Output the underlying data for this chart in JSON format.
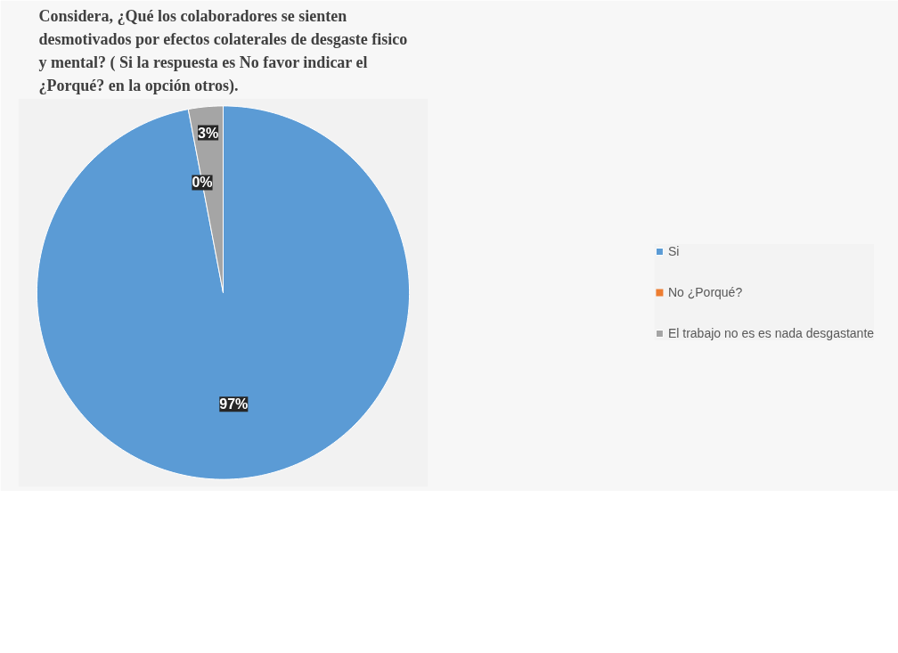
{
  "chart_data": {
    "type": "pie",
    "title": "Considera, ¿Qué los colaboradores  se sienten desmotivados por efectos colaterales de desgaste fisico y mental? ( Si la respuesta es No favor indicar  el ¿Porqué?  en la opción  otros).",
    "categories": [
      "Si",
      "No ¿Porqué?",
      "El trabajo no es es nada desgastante"
    ],
    "values": [
      97,
      0,
      3
    ],
    "value_labels": [
      "97%",
      "0%",
      "3%"
    ],
    "colors": [
      "#5b9bd5",
      "#ed7d31",
      "#a5a5a5"
    ],
    "legend": "right"
  }
}
